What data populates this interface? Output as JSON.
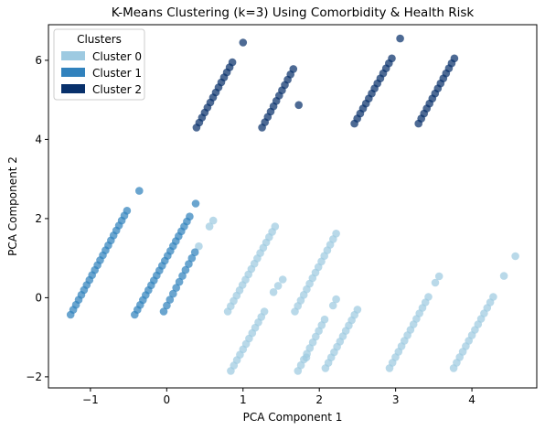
{
  "chart_data": {
    "type": "scatter",
    "title": "K-Means Clustering (k=3) Using Comorbidity & Health Risk",
    "xlabel": "PCA Component 1",
    "ylabel": "PCA Component 2",
    "xlim": [
      -1.55,
      4.85
    ],
    "ylim": [
      -2.28,
      6.9
    ],
    "xticks": [
      -1,
      0,
      1,
      2,
      3,
      4
    ],
    "yticks": [
      -2,
      0,
      2,
      4,
      6
    ],
    "grid": false,
    "legend": {
      "title": "Clusters",
      "placement": "top-left",
      "entries": [
        "Cluster 0",
        "Cluster 1",
        "Cluster 2"
      ]
    },
    "series": [
      {
        "name": "Cluster 0",
        "color": "#9ecae1",
        "segments": [
          {
            "start": [
              0.8,
              -0.35
            ],
            "end": [
              1.42,
              1.8
            ],
            "n": 17
          },
          {
            "start": [
              0.84,
              -1.85
            ],
            "end": [
              1.28,
              -0.35
            ],
            "n": 12
          },
          {
            "start": [
              1.68,
              -0.35
            ],
            "end": [
              2.22,
              1.62
            ],
            "n": 15
          },
          {
            "start": [
              1.72,
              -1.85
            ],
            "end": [
              2.07,
              -0.55
            ],
            "n": 10
          },
          {
            "start": [
              2.08,
              -1.78
            ],
            "end": [
              2.5,
              -0.3
            ],
            "n": 12
          },
          {
            "start": [
              2.92,
              -1.78
            ],
            "end": [
              3.43,
              0.02
            ],
            "n": 14
          },
          {
            "start": [
              3.76,
              -1.78
            ],
            "end": [
              4.28,
              0.02
            ],
            "n": 14
          }
        ],
        "extra_points": [
          [
            0.56,
            1.8
          ],
          [
            0.61,
            1.95
          ],
          [
            0.42,
            1.3
          ],
          [
            1.4,
            0.14
          ],
          [
            1.46,
            0.3
          ],
          [
            1.52,
            0.46
          ],
          [
            1.83,
            -1.51
          ],
          [
            2.18,
            -0.2
          ],
          [
            2.22,
            -0.04
          ],
          [
            3.52,
            0.38
          ],
          [
            3.57,
            0.54
          ],
          [
            4.42,
            0.55
          ],
          [
            4.57,
            1.05
          ]
        ]
      },
      {
        "name": "Cluster 1",
        "color": "#3182bd",
        "segments": [
          {
            "start": [
              -1.26,
              -0.43
            ],
            "end": [
              -0.52,
              2.2
            ],
            "n": 22
          },
          {
            "start": [
              -0.42,
              -0.43
            ],
            "end": [
              0.3,
              2.05
            ],
            "n": 21
          },
          {
            "start": [
              -0.04,
              -0.35
            ],
            "end": [
              0.37,
              1.15
            ],
            "n": 11
          }
        ],
        "extra_points": [
          [
            -0.36,
            2.7
          ],
          [
            0.38,
            2.38
          ]
        ]
      },
      {
        "name": "Cluster 2",
        "color": "#08306b",
        "segments": [
          {
            "start": [
              0.39,
              4.3
            ],
            "end": [
              0.86,
              5.95
            ],
            "n": 14
          },
          {
            "start": [
              1.25,
              4.3
            ],
            "end": [
              1.66,
              5.78
            ],
            "n": 12
          },
          {
            "start": [
              2.46,
              4.4
            ],
            "end": [
              2.95,
              6.05
            ],
            "n": 14
          },
          {
            "start": [
              3.3,
              4.4
            ],
            "end": [
              3.77,
              6.05
            ],
            "n": 14
          }
        ],
        "extra_points": [
          [
            1.0,
            6.45
          ],
          [
            1.73,
            4.87
          ],
          [
            3.06,
            6.55
          ]
        ]
      }
    ]
  }
}
